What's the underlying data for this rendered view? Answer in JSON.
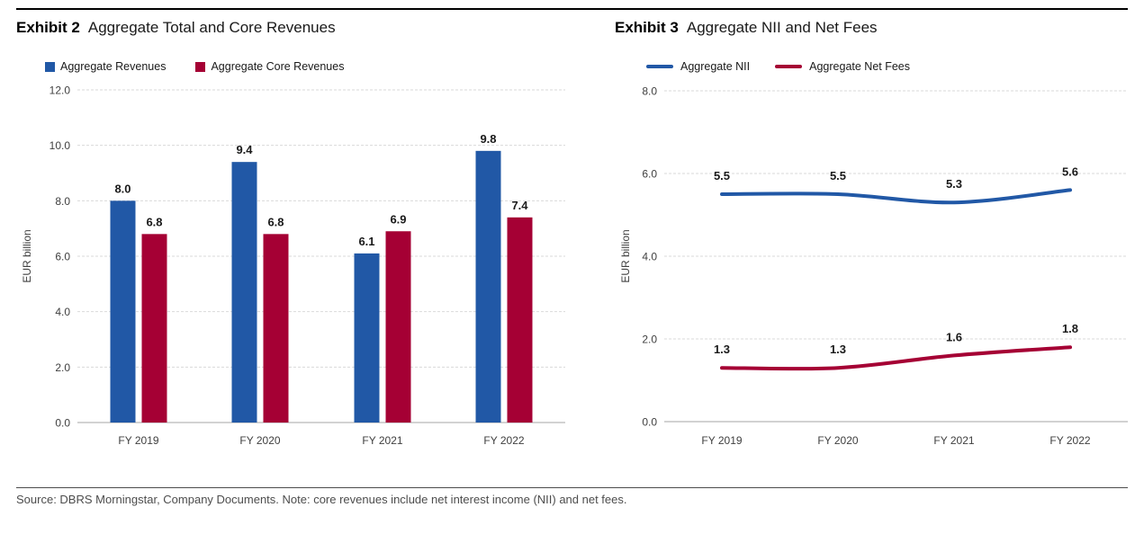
{
  "footer": {
    "source": "Source: DBRS Morningstar, Company Documents. Note: core revenues include net interest income (NII) and net fees."
  },
  "colors": {
    "blue": "#2158A6",
    "crimson": "#A50034",
    "gridline": "#d9d9d9",
    "axis_line": "#a6a6a6",
    "tick_text": "#404040",
    "value_label_text": "#1a1a1a"
  },
  "chart_data": [
    {
      "type": "bar",
      "exhibit_label": "Exhibit 2",
      "title": "Aggregate Total and Core Revenues",
      "ylabel": "EUR billion",
      "categories": [
        "FY 2019",
        "FY 2020",
        "FY 2021",
        "FY 2022"
      ],
      "series": [
        {
          "name": "Aggregate Revenues",
          "color": "#2158A6",
          "values": [
            8.0,
            9.4,
            6.1,
            9.8
          ]
        },
        {
          "name": "Aggregate Core Revenues",
          "color": "#A50034",
          "values": [
            6.8,
            6.8,
            6.9,
            7.4
          ]
        }
      ],
      "ylim": [
        0,
        12
      ],
      "yticks": [
        0,
        2,
        4,
        6,
        8,
        10,
        12
      ],
      "grid": true,
      "legend_position": "top-left",
      "value_labels": true
    },
    {
      "type": "line",
      "exhibit_label": "Exhibit 3",
      "title": "Aggregate NII and Net Fees",
      "ylabel": "EUR billion",
      "categories": [
        "FY 2019",
        "FY 2020",
        "FY 2021",
        "FY 2022"
      ],
      "series": [
        {
          "name": "Aggregate NII",
          "color": "#2158A6",
          "values": [
            5.5,
            5.5,
            5.3,
            5.6
          ]
        },
        {
          "name": "Aggregate Net Fees",
          "color": "#A50034",
          "values": [
            1.3,
            1.3,
            1.6,
            1.8
          ]
        }
      ],
      "ylim": [
        0,
        8
      ],
      "yticks": [
        0,
        2,
        4,
        6,
        8
      ],
      "grid": true,
      "legend_position": "top-left",
      "value_labels": true,
      "smooth": true
    }
  ]
}
